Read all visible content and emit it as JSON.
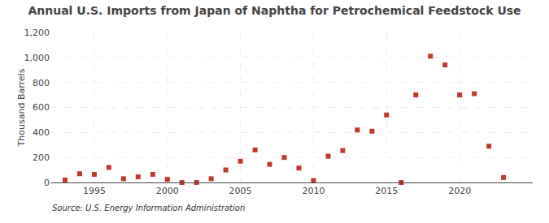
{
  "chart_data": {
    "type": "scatter",
    "title": "Annual U.S. Imports from Japan of Naphtha for Petrochemical Feedstock Use",
    "ylabel": "Thousand Barrels",
    "source": "Source: U.S. Energy Information Administration",
    "x": [
      1993,
      1994,
      1995,
      1996,
      1997,
      1998,
      1999,
      2000,
      2001,
      2002,
      2003,
      2004,
      2005,
      2006,
      2007,
      2008,
      2009,
      2010,
      2011,
      2012,
      2013,
      2014,
      2015,
      2016,
      2017,
      2018,
      2019,
      2020,
      2021,
      2022,
      2023
    ],
    "values": [
      20,
      70,
      65,
      120,
      30,
      45,
      65,
      25,
      0,
      0,
      30,
      100,
      170,
      260,
      145,
      200,
      115,
      15,
      210,
      255,
      420,
      410,
      540,
      0,
      700,
      1010,
      940,
      700,
      710,
      290,
      40
    ],
    "color": "#c0392b",
    "marker": "square",
    "xlim": [
      1992,
      2025
    ],
    "xticks": [
      1995,
      2000,
      2005,
      2010,
      2015,
      2020
    ],
    "ylim": [
      0,
      1200
    ],
    "yticks": [
      0,
      200,
      400,
      600,
      800,
      {
        "value": 1000,
        "label": "1,000"
      },
      {
        "value": 1200,
        "label": "1,200"
      }
    ],
    "grid": true
  }
}
